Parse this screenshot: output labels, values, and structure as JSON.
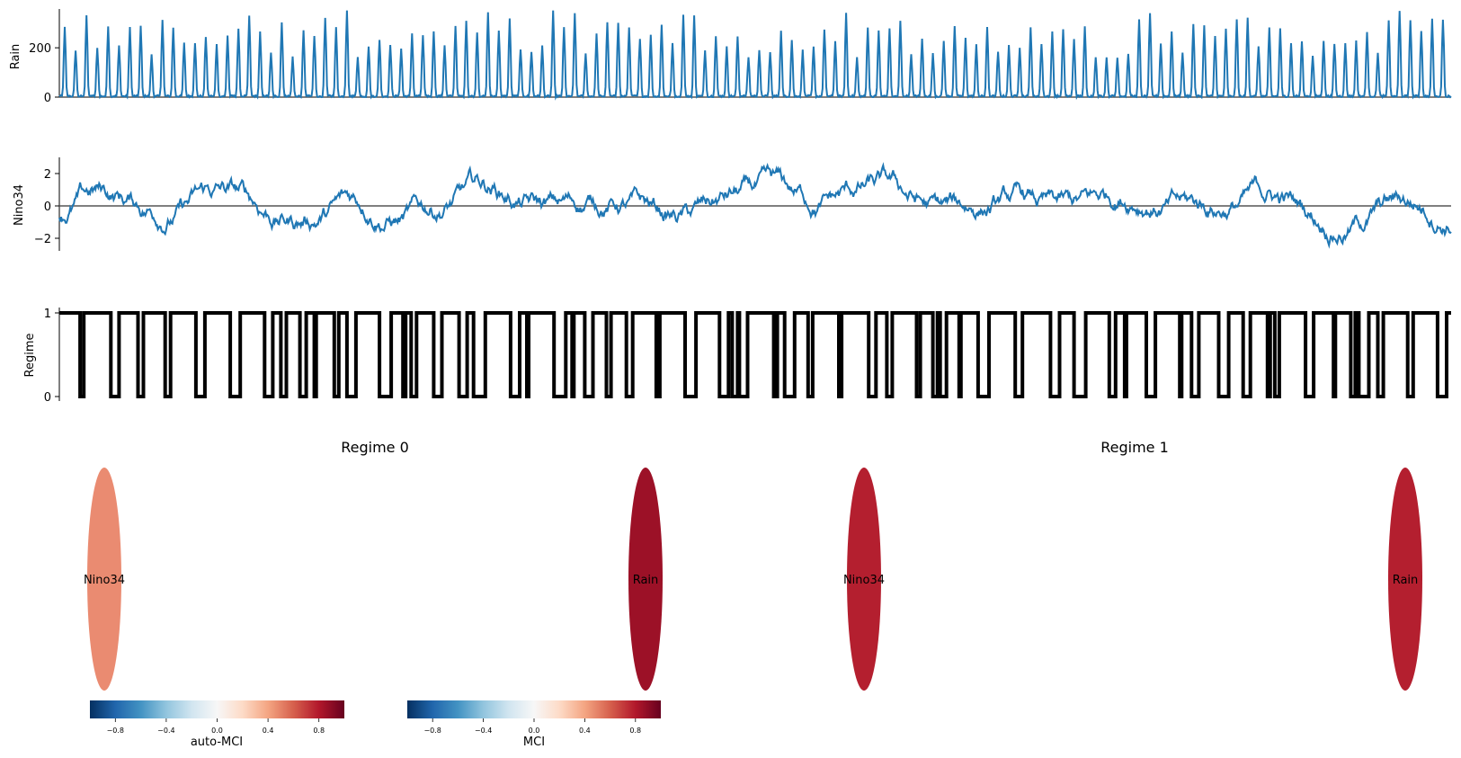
{
  "chart_data": [
    {
      "type": "line",
      "name_hint": "rain-panel",
      "ylabel": "Rain",
      "yticks": [
        0,
        200
      ],
      "ylim": [
        0,
        350
      ],
      "n": 1540,
      "period": 12,
      "peak_range": [
        150,
        345
      ],
      "zero_line": true,
      "color": "#1f77b4"
    },
    {
      "type": "line",
      "name_hint": "nino34-panel",
      "ylabel": "Nino34",
      "yticks": [
        -2,
        0,
        2
      ],
      "ylim": [
        -3,
        3
      ],
      "n": 1540,
      "zero_line": true,
      "color": "#1f77b4"
    },
    {
      "type": "line",
      "name_hint": "regime-panel",
      "ylabel": "Regime",
      "yticks": [
        0,
        1
      ],
      "ylim": [
        0,
        1
      ],
      "n": 1540,
      "color": "#000000"
    }
  ],
  "graphs": [
    {
      "title": "Regime 0",
      "nodes": [
        {
          "label": "Nino34",
          "auto_mci": 0.45,
          "color": "#ea8b71"
        },
        {
          "label": "Rain",
          "auto_mci": 0.9,
          "color": "#9c1127"
        }
      ]
    },
    {
      "title": "Regime 1",
      "nodes": [
        {
          "label": "Nino34",
          "auto_mci": 0.8,
          "color": "#b41f2f"
        },
        {
          "label": "Rain",
          "auto_mci": 0.8,
          "color": "#b41f2f"
        }
      ]
    }
  ],
  "colorbars": [
    {
      "label": "auto-MCI",
      "ticks": [
        "−0.8",
        "−0.4",
        "0.0",
        "0.4",
        "0.8"
      ],
      "range": [
        -1,
        1
      ]
    },
    {
      "label": "MCI",
      "ticks": [
        "−0.8",
        "−0.4",
        "0.0",
        "0.4",
        "0.8"
      ],
      "range": [
        -1,
        1
      ]
    }
  ],
  "colormap": [
    "#053061",
    "#2166ac",
    "#4393c3",
    "#92c5de",
    "#d1e5f0",
    "#f7f7f7",
    "#fddbc7",
    "#f4a582",
    "#d6604d",
    "#b2182b",
    "#67001f"
  ]
}
